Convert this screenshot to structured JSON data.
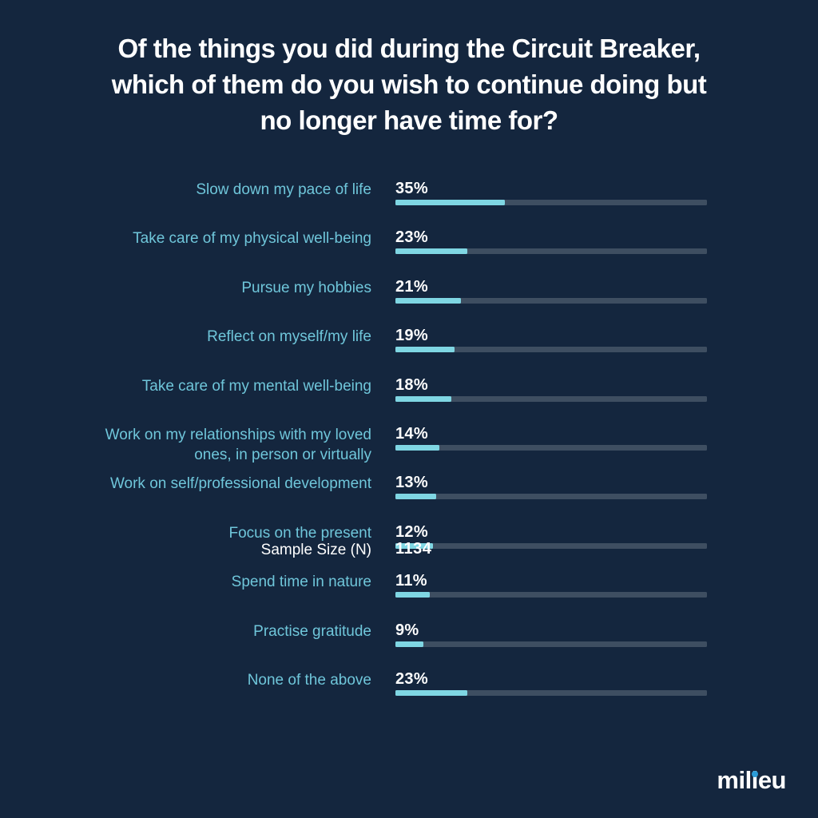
{
  "colors": {
    "background": "#14263E",
    "title_text": "#FFFFFF",
    "category_label_text": "#6FC6DA",
    "value_text": "#FFFFFF",
    "bar_fill": "#7FD6E3",
    "bar_track": "#3E4E61",
    "logo_text": "#FFFFFF",
    "logo_dot": "#2B9CD8"
  },
  "title": {
    "full": "Of the things you did during the Circuit Breaker, which of them do you wish to continue doing but no longer have time for?",
    "lines": [
      "Of the things you did during the Circuit Breaker,",
      "which of them do you wish to continue doing but",
      "no longer have time for?"
    ]
  },
  "chart_data": {
    "type": "bar",
    "orientation": "horizontal",
    "title": "Of the things you did during the Circuit Breaker, which of them do you wish to continue doing but no longer have time for?",
    "xlabel": "",
    "ylabel": "",
    "xlim": [
      0,
      100
    ],
    "value_unit": "%",
    "grid": false,
    "legend": false,
    "categories": [
      "Slow down my pace of life",
      "Take care of my physical well-being",
      "Pursue my hobbies",
      "Reflect on myself/my life",
      "Take care of my mental well-being",
      "Work on my relationships with my loved ones, in person or virtually",
      "Work on self/professional development",
      "Focus on the present",
      "Spend time in nature",
      "Practise gratitude",
      "None of the above"
    ],
    "values": [
      35,
      23,
      21,
      19,
      18,
      14,
      13,
      12,
      11,
      9,
      23
    ],
    "value_labels": [
      "35%",
      "23%",
      "21%",
      "19%",
      "18%",
      "14%",
      "13%",
      "12%",
      "11%",
      "9%",
      "23%"
    ]
  },
  "sample": {
    "label": "Sample Size (N)",
    "value": "1134"
  },
  "logo": {
    "text": "milieu",
    "pre": "mil",
    "dotted_letter": "i",
    "post": "eu"
  }
}
